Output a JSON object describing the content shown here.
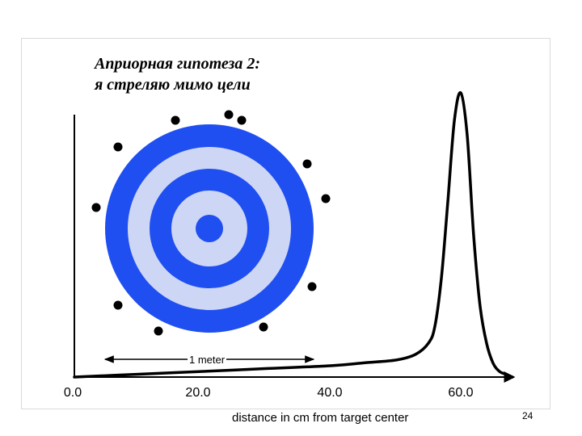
{
  "slide": {
    "title_line1": "Априорная гипотеза 2:",
    "title_line2": "я стреляю мимо цели",
    "page_number": "24"
  },
  "target": {
    "measure_label": "1 meter",
    "colors": {
      "dark_ring": "#1f4ff0",
      "light_ring": "#cdd6f5",
      "shot": "#000000"
    }
  },
  "axis": {
    "tick_labels": [
      "0.0",
      "20.0",
      "40.0",
      "60.0"
    ],
    "title": "distance in cm from target center"
  },
  "chart_data": {
    "type": "line",
    "xlabel": "distance in cm from target center",
    "ylabel": "",
    "xlim": [
      0,
      70
    ],
    "x_ticks": [
      0,
      20,
      40,
      60
    ],
    "peak_x": 60,
    "series": [
      {
        "x": [
          0,
          10,
          20,
          30,
          40,
          45,
          50,
          53,
          55,
          56,
          57,
          58,
          59,
          60,
          61,
          62,
          63,
          64,
          65,
          66,
          67,
          68
        ],
        "y": [
          0.0,
          0.01,
          0.02,
          0.03,
          0.04,
          0.05,
          0.06,
          0.08,
          0.12,
          0.18,
          0.35,
          0.62,
          0.9,
          1.0,
          0.85,
          0.5,
          0.25,
          0.12,
          0.05,
          0.02,
          0.01,
          0.0
        ]
      }
    ]
  }
}
